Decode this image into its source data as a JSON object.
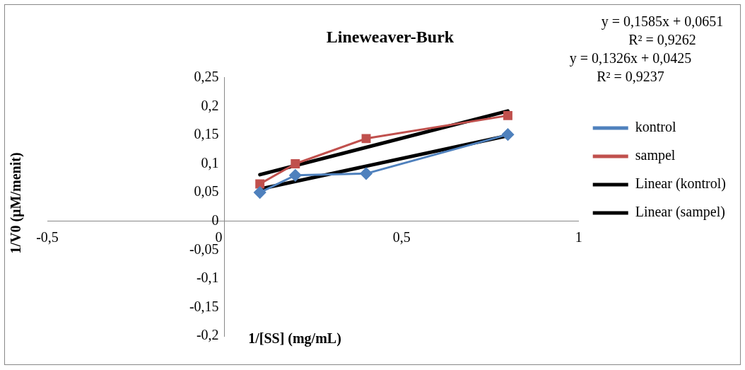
{
  "chart_data": {
    "type": "line",
    "title": "Lineweaver-Burk",
    "xlabel": "1/[SS] (mg/mL)",
    "ylabel": "1/V0 (µM/menit)",
    "xlim": [
      -0.5,
      1
    ],
    "xticks": [
      {
        "value": -0.5,
        "label": "-0,5"
      },
      0,
      {
        "value": 0.5,
        "label": "0,5"
      },
      1
    ],
    "ylim": [
      -0.2,
      0.25
    ],
    "yticks": [
      {
        "value": -0.2,
        "label": "-0,2"
      },
      {
        "value": -0.15,
        "label": "-0,15"
      },
      {
        "value": -0.1,
        "label": "-0,1"
      },
      {
        "value": -0.05,
        "label": "-0,05"
      },
      0,
      {
        "value": 0.05,
        "label": "0,05"
      },
      {
        "value": 0.1,
        "label": "0,1"
      },
      {
        "value": 0.15,
        "label": "0,15"
      },
      {
        "value": 0.2,
        "label": "0,2"
      },
      {
        "value": 0.25,
        "label": "0,25"
      }
    ],
    "grid": false,
    "legend": "right",
    "line_style": "solid",
    "series": [
      {
        "name": "kontrol",
        "color": "#4f81bd",
        "marker": "diamond",
        "x": [
          0.1,
          0.2,
          0.4,
          0.8
        ],
        "values": [
          0.05,
          0.08,
          0.083,
          0.151
        ]
      },
      {
        "name": "sampel",
        "color": "#c0504d",
        "marker": "square",
        "x": [
          0.1,
          0.2,
          0.4,
          0.8
        ],
        "values": [
          0.065,
          0.1,
          0.144,
          0.184
        ]
      },
      {
        "name": "Linear (kontrol)",
        "color": "#000000",
        "marker": "none",
        "x": [
          0.1,
          0.8
        ],
        "values": [
          0.056,
          0.149
        ]
      },
      {
        "name": "Linear (sampel)",
        "color": "#000000",
        "marker": "none",
        "x": [
          0.1,
          0.8
        ],
        "values": [
          0.081,
          0.192
        ]
      }
    ],
    "annotations": [
      "y = 0,1585x + 0,0651",
      "R² = 0,9262",
      "y = 0,1326x + 0,0425",
      "R² = 0,9237"
    ]
  }
}
